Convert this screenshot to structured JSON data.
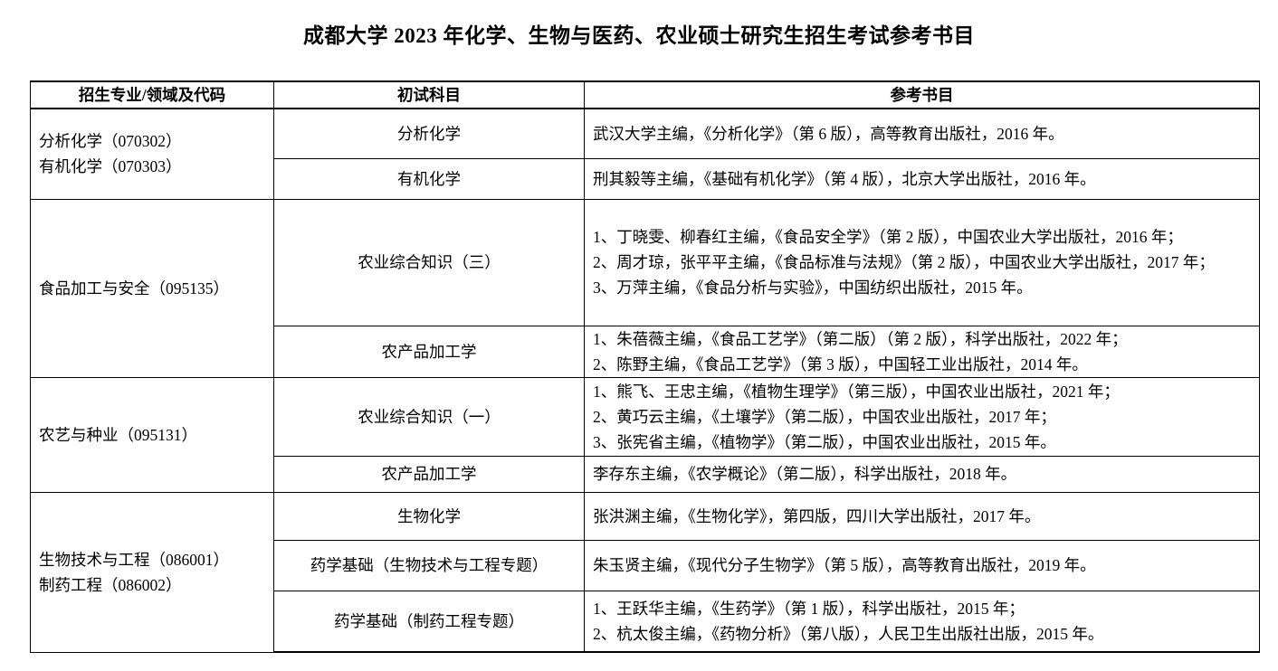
{
  "page": {
    "title": "成都大学 2023 年化学、生物与医药、农业硕士研究生招生考试参考书目"
  },
  "table": {
    "headers": {
      "major": "招生专业/领域及代码",
      "subject": "初试科目",
      "books": "参考书目"
    },
    "groups": [
      {
        "major_lines": [
          "分析化学（070302）",
          "有机化学（070303）"
        ],
        "rows": [
          {
            "subject": "分析化学",
            "books": [
              "武汉大学主编，《分析化学》（第 6 版），高等教育出版社，2016 年。"
            ]
          },
          {
            "subject": "有机化学",
            "books": [
              "刑其毅等主编，《基础有机化学》（第 4 版），北京大学出版社，2016 年。"
            ]
          }
        ]
      },
      {
        "major_lines": [
          "食品加工与安全（095135）"
        ],
        "rows": [
          {
            "subject": "农业综合知识（三）",
            "books": [
              "1、丁晓雯、柳春红主编，《食品安全学》（第 2 版），中国农业大学出版社，2016 年；",
              "2、周才琼，张平平主编，《食品标准与法规》（第 2 版），中国农业大学出版社，2017 年；",
              "3、万萍主编，《食品分析与实验》，中国纺织出版社，2015 年。"
            ]
          },
          {
            "subject": "农产品加工学",
            "books": [
              "1、朱蓓薇主编，《食品工艺学》（第二版）（第 2 版），科学出版社，2022 年；",
              "2、陈野主编，《食品工艺学》（第 3 版），中国轻工业出版社，2014 年。"
            ]
          }
        ]
      },
      {
        "major_lines": [
          "农艺与种业（095131）"
        ],
        "rows": [
          {
            "subject": "农业综合知识（一）",
            "books": [
              "1、熊飞、王忠主编，《植物生理学》（第三版），中国农业出版社，2021 年；",
              "2、黄巧云主编，《土壤学》（第二版），中国农业出版社，2017 年；",
              "3、张宪省主编，《植物学》（第二版），中国农业出版社，2015 年。"
            ]
          },
          {
            "subject": "农产品加工学",
            "books": [
              "李存东主编，《农学概论》（第二版），科学出版社，2018 年。"
            ]
          }
        ]
      },
      {
        "major_lines": [
          "生物技术与工程（086001）",
          "制药工程（086002）"
        ],
        "rows": [
          {
            "subject": "生物化学",
            "books": [
              "张洪渊主编，《生物化学》，第四版，四川大学出版社，2017 年。"
            ]
          },
          {
            "subject": "药学基础（生物技术与工程专题）",
            "books": [
              "朱玉贤主编，《现代分子生物学》（第 5 版），高等教育出版社，2019 年。"
            ]
          },
          {
            "subject": "药学基础（制药工程专题）",
            "books": [
              "1、王跃华主编，《生药学》（第 1 版），科学出版社，2015 年；",
              "2、杭太俊主编，《药物分析》（第八版），人民卫生出版社出版，2015 年。"
            ]
          }
        ]
      }
    ]
  }
}
